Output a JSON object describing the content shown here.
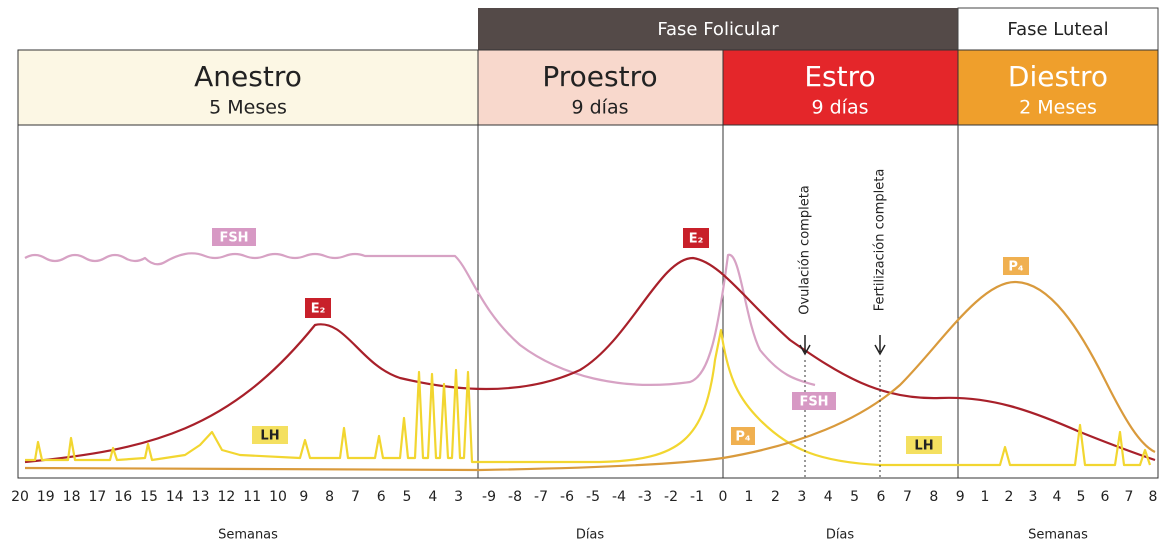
{
  "groups": [
    {
      "label": "Fase Folicular"
    },
    {
      "label": "Fase Luteal"
    }
  ],
  "phases": [
    {
      "name": "Anestro",
      "duration": "5 Meses"
    },
    {
      "name": "Proestro",
      "duration": "9 días"
    },
    {
      "name": "Estro",
      "duration": "9 días"
    },
    {
      "name": "Diestro",
      "duration": "2 Meses"
    }
  ],
  "hormone_labels": {
    "fsh_left": "FSH",
    "e2_left": "E₂",
    "lh_left": "LH",
    "e2_right": "E₂",
    "p4_mid": "P₄",
    "fsh_right": "FSH",
    "lh_right": "LH",
    "p4_right": "P₄"
  },
  "annotations": {
    "ovulation": "Ovulación completa",
    "fertilization": "Fertilización completa"
  },
  "axis_segments": [
    {
      "ticks": [
        "20",
        "19",
        "18",
        "17",
        "16",
        "15",
        "14",
        "13",
        "12",
        "11",
        "10",
        "9",
        "8",
        "7",
        "6",
        "5",
        "4",
        "3"
      ],
      "unit": "Semanas"
    },
    {
      "ticks": [
        "-9",
        "-8",
        "-7",
        "-6",
        "-5",
        "-4",
        "-3",
        "-2",
        "-1",
        "0"
      ],
      "unit": "Días"
    },
    {
      "ticks": [
        "1",
        "2",
        "3",
        "4",
        "5",
        "6",
        "7",
        "8",
        "9"
      ],
      "unit": "Días"
    },
    {
      "ticks": [
        "1",
        "2",
        "3",
        "4",
        "5",
        "6",
        "7",
        "8"
      ],
      "unit": "Semanas"
    }
  ]
}
